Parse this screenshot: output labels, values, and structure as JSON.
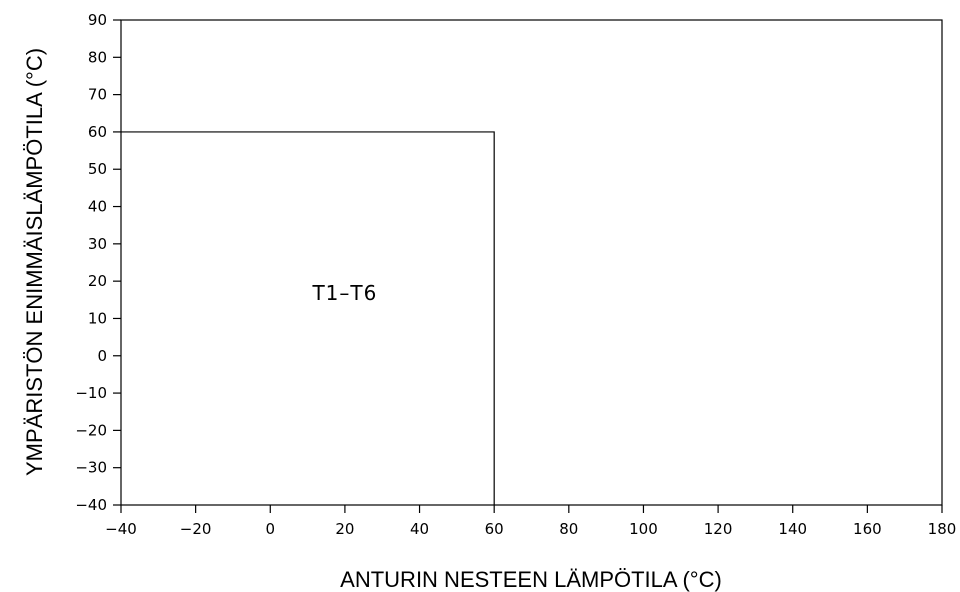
{
  "chart_data": {
    "type": "area",
    "title": "",
    "xlabel": "ANTURIN NESTEEN LÄMPÖTILA (°C)",
    "ylabel": "YMPÄRISTÖN ENIMMÄISLÄMPÖTILA (°C)",
    "xlim": [
      -40,
      180
    ],
    "ylim": [
      -40,
      90
    ],
    "x_ticks": [
      -40,
      -20,
      0,
      20,
      40,
      60,
      80,
      100,
      120,
      140,
      160,
      180
    ],
    "y_ticks": [
      -40,
      -30,
      -20,
      -10,
      0,
      10,
      20,
      30,
      40,
      50,
      60,
      70,
      80,
      90
    ],
    "grid": false,
    "series": [
      {
        "name": "T1–T6",
        "x": [
          -40,
          60,
          60
        ],
        "y": [
          60,
          60,
          -40
        ]
      }
    ],
    "annotations": [
      {
        "text": "T1–T6",
        "x": 20,
        "y": 15
      }
    ]
  }
}
